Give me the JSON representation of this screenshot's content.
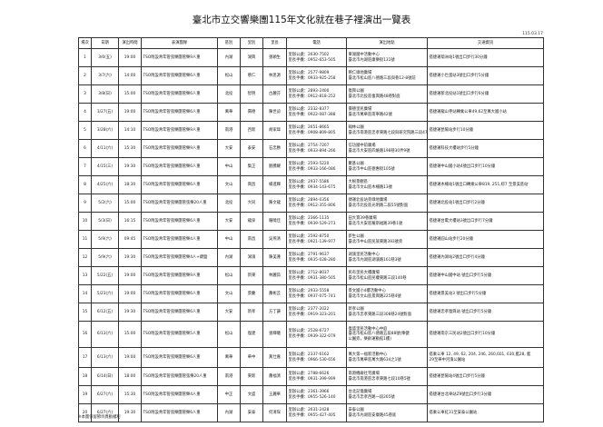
{
  "title": "臺北市立交響樂團115年文化就在巷子裡演出一覽表",
  "date": "115.03.17",
  "headers": [
    "場次",
    "日期",
    "演出時間",
    "表演團隊",
    "區別",
    "里別",
    "里長",
    "電話",
    "演出地點",
    "交通資訊"
  ],
  "rows": [
    {
      "no": "1",
      "date": "3/6(五)",
      "time": "19:00",
      "team": "TSO附設青年管弦樂團管樂9人重",
      "district": "內湖",
      "village": "湖興",
      "chief": "張穎生",
      "phone1": "里辦公處：2630-7502",
      "phone2": "里長手機：0952-653-505",
      "place1": "東湖國中活動中心",
      "place2": "臺北市內湖區康樂街131號",
      "transit": "搭捷運葫洲站1號出口步行30分鐘"
    },
    {
      "no": "2",
      "date": "3/7(六)",
      "time": "14:00",
      "team": "TSO附設青年管弦樂團管樂6人重",
      "district": "松山",
      "village": "慈仁",
      "chief": "林思源",
      "phone1": "里辦公處：2577-9809",
      "phone2": "里長手機：0933-925-258",
      "place1": "慈仁綠地廣場",
      "place2": "臺北市松山區八德路三段與巷12-8號前",
      "transit": "搭捷運小巨蛋站3號出口步行5分鐘"
    },
    {
      "no": "3",
      "date": "3/8(日)",
      "time": "15:00",
      "team": "TSO附設青年管弦樂團管樂6人重",
      "district": "北投",
      "village": "智明",
      "chief": "古麗芬",
      "phone1": "里辦公處：2893-2400",
      "phone2": "里長手機：0912-818-252",
      "place1": "復興公園",
      "place2": "臺北市北投區復興路48巷對面",
      "transit": "搭捷運新北投站1號出口步行6分鐘"
    },
    {
      "no": "4",
      "date": "3/27(五)",
      "time": "19:00",
      "team": "TSO附設青年管弦樂團管樂6人重",
      "district": "萬華",
      "village": "壽德",
      "chief": "陳世諒",
      "phone1": "里辦公處：2332-8377",
      "phone2": "里長手機：0922-087-388",
      "place1": "壽德里民廣場",
      "place2": "臺北市萬華區南寧路42號",
      "transit": "搭捷運龍山寺站轉乘公車49,62至萬大國小站"
    },
    {
      "no": "5",
      "date": "3/28(六)",
      "time": "14:10",
      "team": "TSO附設青年管弦樂團管樂9人重",
      "district": "南港",
      "village": "西新",
      "chief": "胡家瑋",
      "phone1": "里辦公處：2651-8665",
      "phone2": "里長手機：0908-809-805",
      "place1": "翰林公園",
      "place2": "臺北市南港區忠孝東路七段與研究院路三段47巷口",
      "transit": "搭捷運昆陽站步行10分鐘"
    },
    {
      "no": "6",
      "date": "4/11(六)",
      "time": "15:30",
      "team": "TSO附設青年管弦樂團管樂9人重",
      "district": "大安",
      "village": "泰安",
      "chief": "石忠勝",
      "phone1": "里辦公處：2754-7207",
      "phone2": "里長手機：0933-894-266",
      "place1": "信功國中前廣場",
      "place2": "臺北市大安區四維路198巷30弄9號",
      "transit": "搭捷運科技大樓站步行5分鐘"
    },
    {
      "no": "7",
      "date": "4/15(三)",
      "time": "19:30",
      "team": "TSO附設青年管弦樂團管樂6人重",
      "district": "中山",
      "village": "集正",
      "chief": "劉騰耀",
      "phone1": "里辦公處：2593-5220",
      "phone2": "里長手機：0933-166-086",
      "place1": "聚基公園",
      "place2": "臺北市中山區德惠街105號",
      "transit": "搭捷運中山國小站4號出口步行10分鐘"
    },
    {
      "no": "8",
      "date": "4/25(六)",
      "time": "18:30",
      "team": "TSO附設青年管弦樂團管樂6人重",
      "district": "文山",
      "village": "興昌",
      "chief": "楊進輝",
      "phone1": "里辦公處：2937-5586",
      "phone2": "里長手機：0934-143-675",
      "place1": "大根景觀區",
      "place2": "臺北市文山區木柵路13號",
      "transit": "搭捷運木柵站1號出口轉乘公車819, 251,棕7 至景美區站"
    },
    {
      "no": "9",
      "date": "5/2(六)",
      "time": "15:00",
      "team": "TSO附設青年管弦樂團管弦樂20人重",
      "district": "北投",
      "village": "大同",
      "chief": "陳文龍",
      "phone1": "里辦公處：2894-0356",
      "phone2": "里長手機：0912-355-806",
      "place1": "捷運北投站旁綠地廣場",
      "place2": "臺北市北投區光明路二段55號對面",
      "transit": "搭捷運北投站1號出口步行2分鐘"
    },
    {
      "no": "10",
      "date": "5/3(日)",
      "time": "16:15",
      "team": "TSO附設青年管弦樂團管樂6人重",
      "district": "大安",
      "village": "龍泉",
      "chief": "羅曉佳",
      "phone1": "里辦公處：2366-1135",
      "phone2": "里長手機：0939-529-273",
      "place1": "田大寶39巷廣場",
      "place2": "臺北市大安區羅斯福路39巷1號",
      "transit": "搭捷運台電大樓站3號出口步行7分鐘"
    },
    {
      "no": "11",
      "date": "5/9(六)",
      "time": "09:45",
      "team": "TSO附設青年管弦樂團管樂4人重",
      "district": "中山",
      "village": "南昌",
      "chief": "吳燕清",
      "phone1": "里辦公處：2592-8750",
      "phone2": "里長手機：0921-139-977",
      "place1": "新生公園",
      "place2": "臺北市中山區民族東路393號旁",
      "transit": "搭捷運圓山站步行20分鐘"
    },
    {
      "no": "12",
      "date": "5/9(六)",
      "time": "19:30",
      "team": "TSO附設青年管弦樂團管樂4人+鍵盤",
      "district": "內湖",
      "village": "湖濱",
      "chief": "陳美蓮",
      "phone1": "里辦公處：2791-9637",
      "phone2": "里長手機：0935-028-280",
      "place1": "湖濱里民活動中心",
      "place2": "臺北市內湖區湖濱路161巷3號",
      "transit": "搭捷運內湖站2號出口步行4分鐘"
    },
    {
      "no": "13",
      "date": "5/22(五)",
      "time": "19:00",
      "team": "TSO附設青年管弦樂團管樂9人重",
      "district": "松山",
      "village": "新東",
      "chief": "林麗茹",
      "phone1": "里辦公處：2712-8037",
      "phone2": "里長手機：0931-380-505",
      "place1": "民有里民大樓廣場",
      "place2": "臺北市松山區民權東路三段140巷",
      "transit": "搭捷運中山國中站 號出口步行5分鐘"
    },
    {
      "no": "14",
      "date": "5/23(六)",
      "time": "19:00",
      "team": "TSO附設青年管弦樂團管樂6人重",
      "district": "文山",
      "village": "景慶",
      "chief": "蕭彬芸",
      "phone1": "里辦公處：2933-5558",
      "phone2": "里長手機：0937-075-741",
      "place1": "景文國小4樓活動中心",
      "place2": "臺北市文山區景興路225巷4號",
      "transit": "搭捷運景美站3 號出口步行5分鐘"
    },
    {
      "no": "15",
      "date": "6/12(五)",
      "time": "19:30",
      "team": "TSO附設青年管弦樂團管樂6人重",
      "district": "大安",
      "village": "新孝",
      "chief": "方丁謙",
      "phone1": "里辦公處：2377-2022",
      "phone2": "里長手機：0919-323-201",
      "place1": "新孝公園",
      "place2": "臺北市忠孝東路三段308巷24號對面",
      "transit": "搭捷運忠孝復興站 號出口步行5分鐘"
    },
    {
      "no": "16",
      "date": "6/13(六)",
      "time": "15:00",
      "team": "TSO附設青年管弦樂團管樂5人重",
      "district": "松山",
      "village": "復建",
      "chief": "張輝儀",
      "phone1": "里辦公處：2528-6727",
      "phone2": "里長手機：0939-322-079",
      "place1": "復盛里民活動中心中庭",
      "place2": "臺北市松山區八德路五段88號(樂健",
      "place3": "公園旁，樂齡運動館1樓)",
      "transit": "搭捷運南京三民站2號出口步行10分鐘"
    },
    {
      "no": "17",
      "date": "6/13(六)",
      "time": "19:00",
      "team": "TSO附設青年管弦樂團管樂6人重",
      "district": "萬華",
      "village": "華中",
      "chief": "黃仕嘉",
      "phone1": "里辦公處：2337-6162",
      "phone2": "里長手機：0966-530-656",
      "place1": "萬大第一福新活動中心",
      "place2": "臺北市萬華區萬大路634之1號",
      "transit": "搭乘公車 12, 49, 62, 204, 246, 260,601, 630,藍28, 藍",
      "transit2": "29至華中河濱公園站"
    },
    {
      "no": "18",
      "date": "6/14(日)",
      "time": "18:00",
      "team": "TSO附設青年管弦樂團管弦樂20人重",
      "district": "南港",
      "village": "東新",
      "chief": "蕭福清",
      "phone1": "里辦公處：2788-6626",
      "phone2": "里長手機：0931-399-999",
      "place1": "南港機廠社宅廣場",
      "place2": "臺北市南港區忠孝東路七段10巷5號",
      "transit": "搭捷運昆陽站4號出口步行5分鐘"
    },
    {
      "no": "19",
      "date": "6/27(六)",
      "time": "15:30",
      "team": "TSO附設青年管弦樂團管樂4人重",
      "district": "中正",
      "village": "文盛",
      "chief": "王麗華",
      "phone1": "里辦公處：2361-3966",
      "phone2": "里長手機：0955-526-140",
      "place1": "台北記憶廣場",
      "place2": "臺北市忠孝西路一段265號",
      "transit": "搭捷運台北車站Z9號出口步行3分鐘"
    },
    {
      "no": "20",
      "date": "6/27(六)",
      "time": "19:30",
      "team": "TSO附設青年管弦樂團管樂6人重",
      "district": "內湖",
      "village": "安泰",
      "chief": "何清琛",
      "phone1": "里辦公處：2631-2428",
      "phone2": "里長手機：0955-427-405",
      "place1": "安泰公園",
      "place2": "臺北市內湖區安康路45巷底",
      "transit": "搭乘公車紅31至安泰公園站"
    }
  ],
  "note": "※本團保留節目異動權利"
}
